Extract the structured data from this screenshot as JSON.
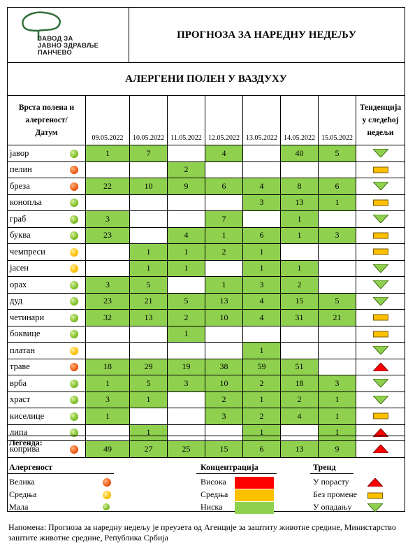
{
  "header": {
    "logo_lines": [
      "ЗАВОД ЗА",
      "ЈАВНО ЗДРАВЉЕ",
      "ПАНЧЕВО"
    ],
    "title": "ПРОГНОЗА ЗА НАРЕДНУ НЕДЕЉУ",
    "subtitle": "АЛЕРГЕНИ ПОЛЕН У ВАЗДУХУ"
  },
  "table": {
    "first_col_header": [
      "Врста полена и",
      "алергеност/",
      "Датум"
    ],
    "trend_header": [
      "Тенденција",
      "у следећој",
      "недељи"
    ],
    "dates": [
      "09.05.2022",
      "10.05.2022",
      "11.05.2022",
      "12.05.2022",
      "13.05.2022",
      "14.05.2022",
      "15.05.2022"
    ],
    "rows": [
      {
        "name": "јавор",
        "allergen": "low",
        "values": [
          "1",
          "7",
          "",
          "4",
          "",
          "40",
          "5"
        ],
        "trend": "down"
      },
      {
        "name": "пелин",
        "allergen": "high",
        "values": [
          "",
          "",
          "2",
          "",
          "",
          "",
          ""
        ],
        "trend": "same"
      },
      {
        "name": "бреза",
        "allergen": "high",
        "values": [
          "22",
          "10",
          "9",
          "6",
          "4",
          "8",
          "6"
        ],
        "trend": "down"
      },
      {
        "name": "конопља",
        "allergen": "low",
        "values": [
          "",
          "",
          "",
          "",
          "3",
          "13",
          "1"
        ],
        "trend": "same"
      },
      {
        "name": "граб",
        "allergen": "low",
        "values": [
          "3",
          "",
          "",
          "7",
          "",
          "1",
          ""
        ],
        "trend": "down"
      },
      {
        "name": "буква",
        "allergen": "low",
        "values": [
          "23",
          "",
          "4",
          "1",
          "6",
          "1",
          "3"
        ],
        "trend": "same"
      },
      {
        "name": "чемпреси",
        "allergen": "medium",
        "values": [
          "",
          "1",
          "1",
          "2",
          "1",
          "",
          ""
        ],
        "trend": "same"
      },
      {
        "name": "јасен",
        "allergen": "medium",
        "values": [
          "",
          "1",
          "1",
          "",
          "1",
          "1",
          ""
        ],
        "trend": "down"
      },
      {
        "name": "орах",
        "allergen": "low",
        "values": [
          "3",
          "5",
          "",
          "1",
          "3",
          "2",
          ""
        ],
        "trend": "down"
      },
      {
        "name": "дуд",
        "allergen": "low",
        "values": [
          "23",
          "21",
          "5",
          "13",
          "4",
          "15",
          "5"
        ],
        "trend": "down"
      },
      {
        "name": "четинари",
        "allergen": "low",
        "values": [
          "32",
          "13",
          "2",
          "10",
          "4",
          "31",
          "21"
        ],
        "trend": "same"
      },
      {
        "name": "боквице",
        "allergen": "low",
        "values": [
          "",
          "",
          "1",
          "",
          "",
          "",
          ""
        ],
        "trend": "same"
      },
      {
        "name": "платан",
        "allergen": "medium",
        "values": [
          "",
          "",
          "",
          "",
          "1",
          "",
          ""
        ],
        "trend": "down"
      },
      {
        "name": "траве",
        "allergen": "high",
        "values": [
          "18",
          "29",
          "19",
          "38",
          "59",
          "51",
          ""
        ],
        "trend": "up"
      },
      {
        "name": "врба",
        "allergen": "low",
        "values": [
          "1",
          "5",
          "3",
          "10",
          "2",
          "18",
          "3"
        ],
        "trend": "down"
      },
      {
        "name": "храст",
        "allergen": "low",
        "values": [
          "3",
          "1",
          "",
          "2",
          "1",
          "2",
          "1"
        ],
        "trend": "down"
      },
      {
        "name": "киселице",
        "allergen": "low",
        "values": [
          "1",
          "",
          "",
          "3",
          "2",
          "4",
          "1"
        ],
        "trend": "same"
      },
      {
        "name": "липа",
        "allergen": "low",
        "values": [
          "",
          "1",
          "",
          "",
          "1",
          "",
          "1"
        ],
        "trend": "up"
      },
      {
        "name": "коприва",
        "allergen": "high",
        "values": [
          "49",
          "27",
          "25",
          "15",
          "6",
          "13",
          "9"
        ],
        "trend": "up"
      }
    ]
  },
  "legend": {
    "title": "Легенда:",
    "allergen_title": "Алергеност",
    "allergen_items": [
      "Велика",
      "Средња",
      "Мала"
    ],
    "conc_title": "Концентрација",
    "conc_items": [
      "Висока",
      "Средња",
      "Ниска"
    ],
    "trend_title": "Тренд",
    "trend_items": [
      "У порасту",
      "Без промене",
      "У опадању"
    ],
    "colors": {
      "high": "#ff0000",
      "medium": "#ffc000",
      "low": "#8fd14f"
    }
  },
  "note": "Напомена: Прогноза за наредну недељу је преузета од Агенције за заштиту животне средине, Министарство заштите животне средине, Република Србија"
}
